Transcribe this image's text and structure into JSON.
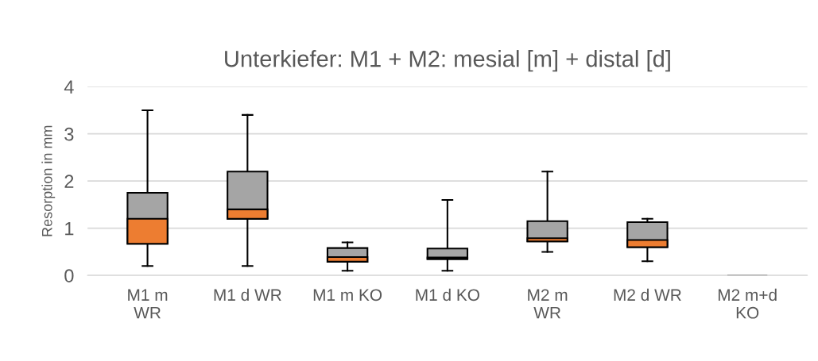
{
  "chart_data": {
    "type": "box",
    "title": "Unterkiefer: M1 + M2: mesial [m] + distal [d]",
    "ylabel": "Resorption in mm",
    "categories": [
      "M1 m\nWR",
      "M1 d WR",
      "M1 m KO",
      "M1 d KO",
      "M2 m\nWR",
      "M2 d WR",
      "M2 m+d\nKO"
    ],
    "color": "#ed7d31",
    "series": [
      {
        "color": "#a5a5a5",
        "boxes": [
          {
            "low": 0.2,
            "q1": 0.67,
            "median": 1.2,
            "q3": 1.75,
            "high": 3.5
          },
          {
            "low": 0.2,
            "q1": 1.2,
            "median": 1.4,
            "q3": 2.2,
            "high": 3.4
          },
          {
            "low": 0.1,
            "q1": 0.29,
            "median": 0.39,
            "q3": 0.58,
            "high": 0.7
          },
          {
            "low": 0.1,
            "q1": 0.35,
            "median": 0.38,
            "q3": 0.57,
            "high": 1.6
          },
          {
            "low": 0.5,
            "q1": 0.72,
            "median": 0.79,
            "q3": 1.15,
            "high": 2.2
          },
          {
            "low": 0.3,
            "q1": 0.6,
            "median": 0.75,
            "q3": 1.13,
            "high": 1.2
          },
          {
            "low": 0,
            "q1": 0,
            "median": 0,
            "q3": 0,
            "high": 0
          }
        ]
      }
    ],
    "ylim": [
      0,
      4
    ],
    "yticks": [
      0,
      1,
      2,
      3,
      4
    ],
    "grid": "y",
    "legend": false
  }
}
